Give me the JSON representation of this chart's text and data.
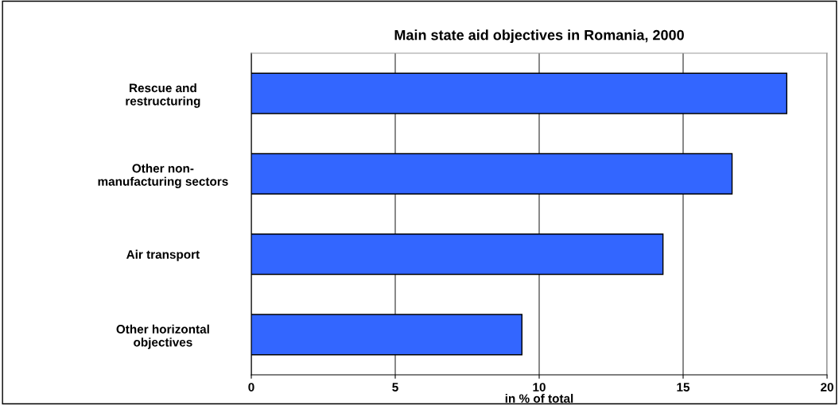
{
  "chart_data": {
    "type": "bar",
    "orientation": "horizontal",
    "title": "Main state aid objectives in Romania, 2000",
    "xlabel": "in % of total",
    "categories": [
      "Rescue and\nrestructuring",
      "Other non-\nmanufacturing sectors",
      "Air transport",
      "Other horizontal\nobjectives"
    ],
    "values": [
      18.6,
      16.7,
      14.3,
      9.4
    ],
    "color": "#3366ff",
    "xlim": [
      0,
      20
    ],
    "xticks": [
      0,
      5,
      10,
      15,
      20
    ],
    "grid": "x",
    "legend": false
  }
}
